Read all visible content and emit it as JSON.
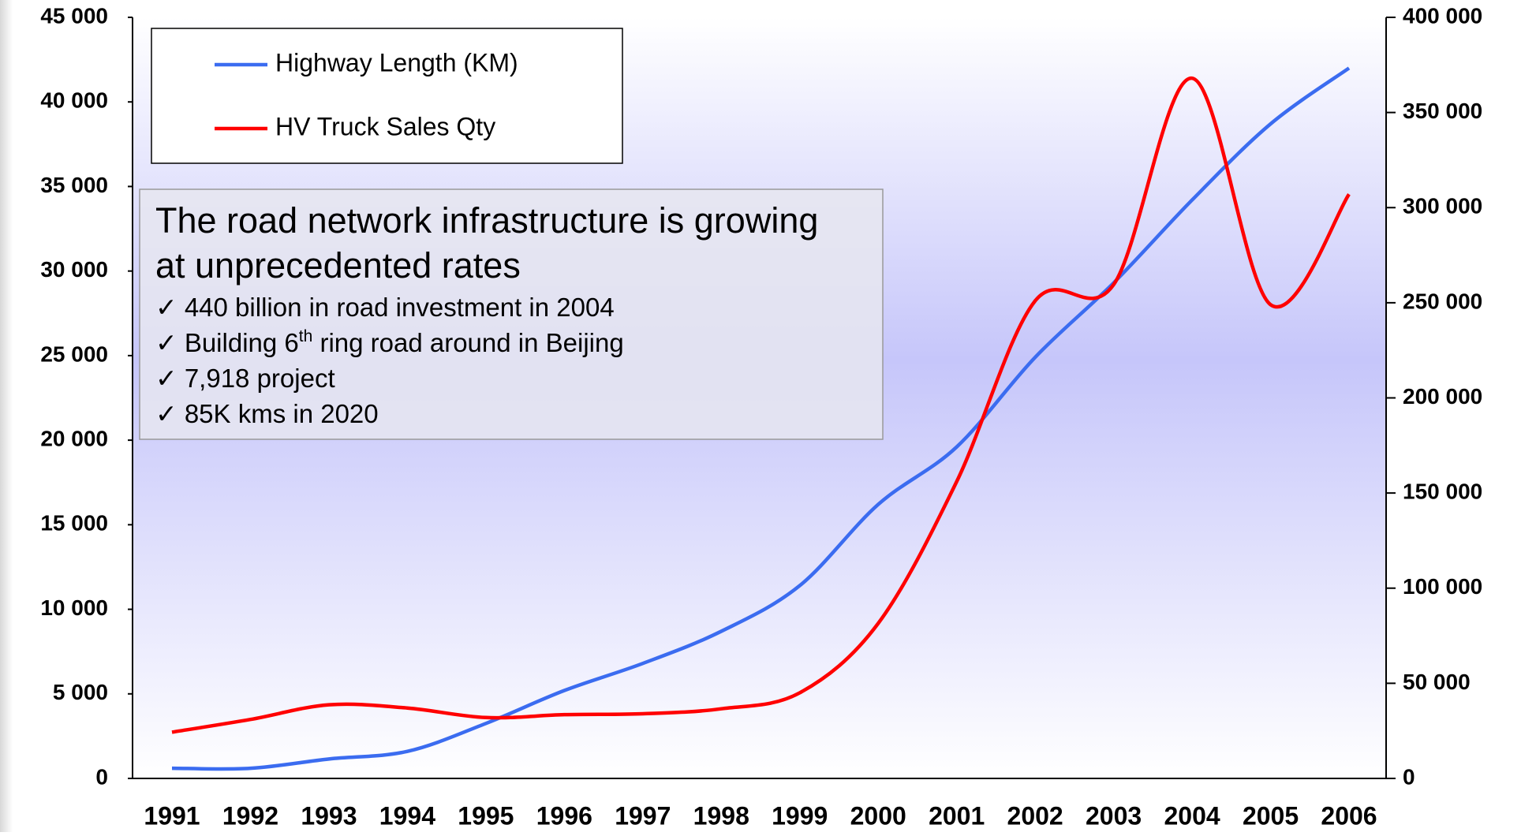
{
  "chart_data": {
    "type": "line",
    "categories": [
      "1991",
      "1992",
      "1993",
      "1994",
      "1995",
      "1996",
      "1997",
      "1998",
      "1999",
      "2000",
      "2001",
      "2002",
      "2003",
      "2004",
      "2005",
      "2006"
    ],
    "series": [
      {
        "name": "Highway Length (KM)",
        "color": "#3b6cf0",
        "axis": "y",
        "values": [
          600,
          600,
          1150,
          1600,
          3250,
          5200,
          6800,
          8700,
          11400,
          16200,
          19600,
          24900,
          29300,
          34200,
          38700,
          42000
        ]
      },
      {
        "name": "HV Truck Sales Qty",
        "color": "#ff0000",
        "axis": "y2",
        "values": [
          24300,
          31000,
          38700,
          37000,
          32000,
          33500,
          34000,
          36600,
          45000,
          81500,
          156000,
          251000,
          259500,
          368000,
          249000,
          307000
        ]
      }
    ],
    "ylim": [
      0,
      45000
    ],
    "yticks": [
      {
        "value": 0,
        "label": "0"
      },
      {
        "value": 5000,
        "label": "5 000"
      },
      {
        "value": 10000,
        "label": "10 000"
      },
      {
        "value": 15000,
        "label": "15 000"
      },
      {
        "value": 20000,
        "label": "20 000"
      },
      {
        "value": 25000,
        "label": "25 000"
      },
      {
        "value": 30000,
        "label": "30 000"
      },
      {
        "value": 35000,
        "label": "35 000"
      },
      {
        "value": 40000,
        "label": "40 000"
      },
      {
        "value": 45000,
        "label": "45 000"
      }
    ],
    "y2lim": [
      0,
      400000
    ],
    "y2ticks": [
      {
        "value": 0,
        "label": "0"
      },
      {
        "value": 50000,
        "label": "50 000"
      },
      {
        "value": 100000,
        "label": "100 000"
      },
      {
        "value": 150000,
        "label": "150 000"
      },
      {
        "value": 200000,
        "label": "200 000"
      },
      {
        "value": 250000,
        "label": "250 000"
      },
      {
        "value": 300000,
        "label": "300 000"
      },
      {
        "value": 350000,
        "label": "350 000"
      },
      {
        "value": 400000,
        "label": "400 000"
      }
    ],
    "legend": "top-left",
    "annotation": {
      "heading": [
        "The road network infrastructure is growing",
        "at unprecedented rates"
      ],
      "bullets": [
        [
          "✓ 440 billion in road investment in 2004"
        ],
        [
          "✓ Building 6",
          "th",
          " ring road around in Beijing"
        ],
        [
          "✓ 7,918 project"
        ],
        [
          "✓ 85K kms in 2020"
        ]
      ]
    }
  }
}
